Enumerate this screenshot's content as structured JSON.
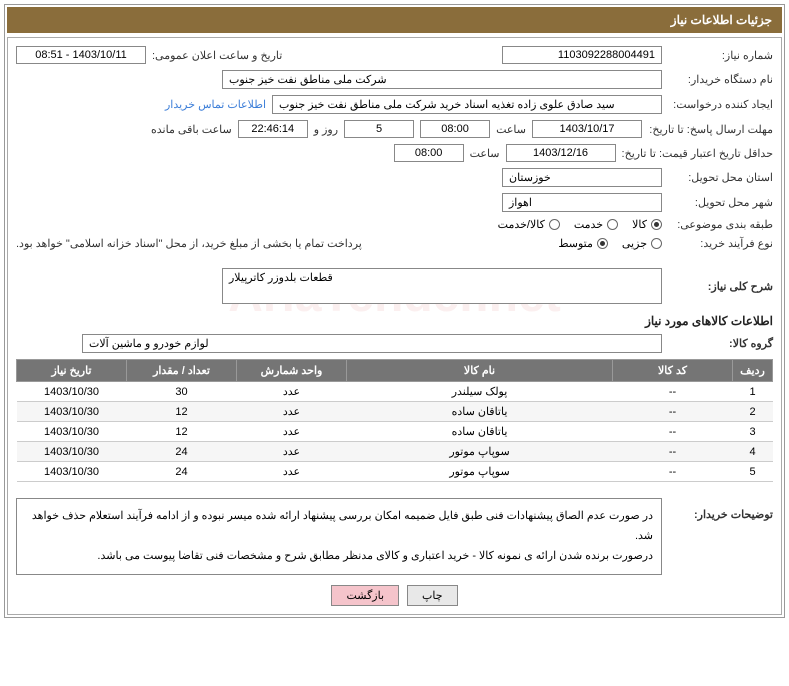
{
  "header": {
    "title": "جزئیات اطلاعات نیاز"
  },
  "watermark": "AriaTender.net",
  "form": {
    "need_no_label": "شماره نیاز:",
    "need_no": "1103092288004491",
    "announce_label": "تاریخ و ساعت اعلان عمومی:",
    "announce_value": "1403/10/11 - 08:51",
    "buyer_org_label": "نام دستگاه خریدار:",
    "buyer_org": "شرکت ملی مناطق نفت خیز جنوب",
    "requester_label": "ایجاد کننده درخواست:",
    "requester": "سید صادق علوی زاده  تغذیه اسناد خرید  شرکت ملی مناطق نفت خیز جنوب",
    "contact_link": "اطلاعات تماس خریدار",
    "deadline_send_label": "مهلت ارسال پاسخ: تا تاریخ:",
    "deadline_send_date": "1403/10/17",
    "time_label": "ساعت",
    "deadline_send_time": "08:00",
    "days_val": "5",
    "days_and": "روز و",
    "countdown": "22:46:14",
    "remaining_label": "ساعت باقی مانده",
    "min_validity_label": "حداقل تاریخ اعتبار قیمت: تا تاریخ:",
    "min_validity_date": "1403/12/16",
    "min_validity_time": "08:00",
    "province_label": "استان محل تحویل:",
    "province": "خوزستان",
    "city_label": "شهر محل تحویل:",
    "city": "اهواز",
    "category_label": "طبقه بندی موضوعی:",
    "category_options": {
      "goods": "کالا",
      "service": "خدمت",
      "goods_service": "کالا/خدمت"
    },
    "category_selected": "goods",
    "process_label": "نوع فرآیند خرید:",
    "process_options": {
      "partial": "جزیی",
      "medium": "متوسط"
    },
    "process_selected": "medium",
    "payment_note": "پرداخت تمام یا بخشی از مبلغ خرید، از محل \"اسناد خزانه اسلامی\" خواهد بود.",
    "overview_label": "شرح کلی نیاز:",
    "overview": "قطعات بلدوزر کاترپیلار"
  },
  "goods_section": {
    "title": "اطلاعات کالاهای مورد نیاز",
    "group_label": "گروه کالا:",
    "group": "لوازم خودرو و ماشین آلات",
    "columns": {
      "row": "ردیف",
      "code": "کد کالا",
      "name": "نام کالا",
      "unit": "واحد شمارش",
      "qty": "تعداد / مقدار",
      "date": "تاریخ نیاز"
    },
    "rows": [
      {
        "row": "1",
        "code": "--",
        "name": "پولک سیلندر",
        "unit": "عدد",
        "qty": "30",
        "date": "1403/10/30"
      },
      {
        "row": "2",
        "code": "--",
        "name": "یاتاقان ساده",
        "unit": "عدد",
        "qty": "12",
        "date": "1403/10/30"
      },
      {
        "row": "3",
        "code": "--",
        "name": "یاتاقان ساده",
        "unit": "عدد",
        "qty": "12",
        "date": "1403/10/30"
      },
      {
        "row": "4",
        "code": "--",
        "name": "سوپاپ موتور",
        "unit": "عدد",
        "qty": "24",
        "date": "1403/10/30"
      },
      {
        "row": "5",
        "code": "--",
        "name": "سوپاپ موتور",
        "unit": "عدد",
        "qty": "24",
        "date": "1403/10/30"
      }
    ]
  },
  "buyer_notes": {
    "label": "توضیحات خریدار:",
    "line1": "در صورت عدم الصاق پیشنهادات فنی طبق فایل ضمیمه امکان بررسی پیشنهاد ارائه شده میسر نبوده و از ادامه فرآیند استعلام حذف خواهد شد.",
    "line2": "درصورت برنده شدن ارائه ی نمونه کالا - خرید اعتباری و کالای مدنظر مطابق شرح و مشخصات فنی تقاضا پیوست می باشد."
  },
  "buttons": {
    "print": "چاپ",
    "back": "بازگشت"
  },
  "style": {
    "col_widths": {
      "row": "40px",
      "code": "120px",
      "name": "auto",
      "unit": "110px",
      "qty": "110px",
      "date": "110px"
    }
  }
}
